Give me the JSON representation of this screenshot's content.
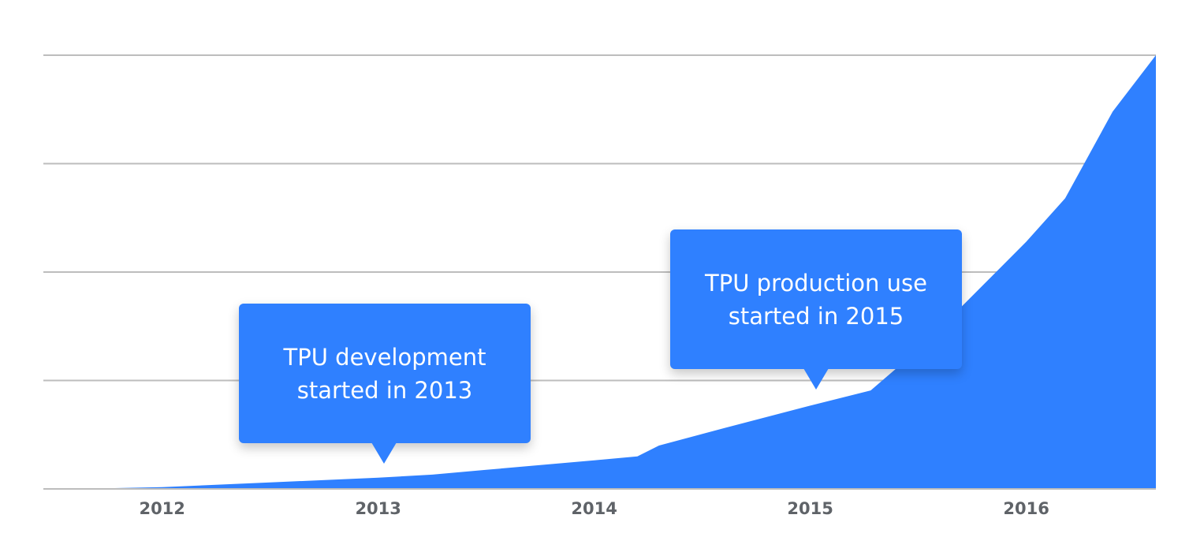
{
  "chart_data": {
    "type": "area",
    "title": "",
    "xlabel": "",
    "ylabel": "",
    "x_tick_labels": [
      "2012",
      "2013",
      "2014",
      "2015",
      "2016"
    ],
    "xlim": [
      2011.45,
      2016.6
    ],
    "ylim": [
      0,
      100
    ],
    "grid": true,
    "y_gridlines": [
      0,
      25,
      50,
      75,
      100
    ],
    "color": "#2f80ff",
    "series": [
      {
        "x": [
          2011.6,
          2012.0,
          2012.5,
          2013.0,
          2013.25,
          2013.5,
          2014.0,
          2014.2,
          2014.3,
          2014.6,
          2015.0,
          2015.28,
          2015.45,
          2015.7,
          2016.0,
          2016.18,
          2016.4,
          2016.6
        ],
        "values": [
          0,
          0.4,
          1.5,
          2.6,
          3.3,
          4.4,
          6.6,
          7.5,
          10,
          14,
          19.2,
          22.7,
          30,
          42,
          57,
          67,
          87,
          100
        ]
      }
    ],
    "annotations": [
      {
        "text": "TPU development\nstarted in 2013",
        "x": 2013.0
      },
      {
        "text": "TPU production use\nstarted in 2015",
        "x": 2015.0
      }
    ]
  }
}
